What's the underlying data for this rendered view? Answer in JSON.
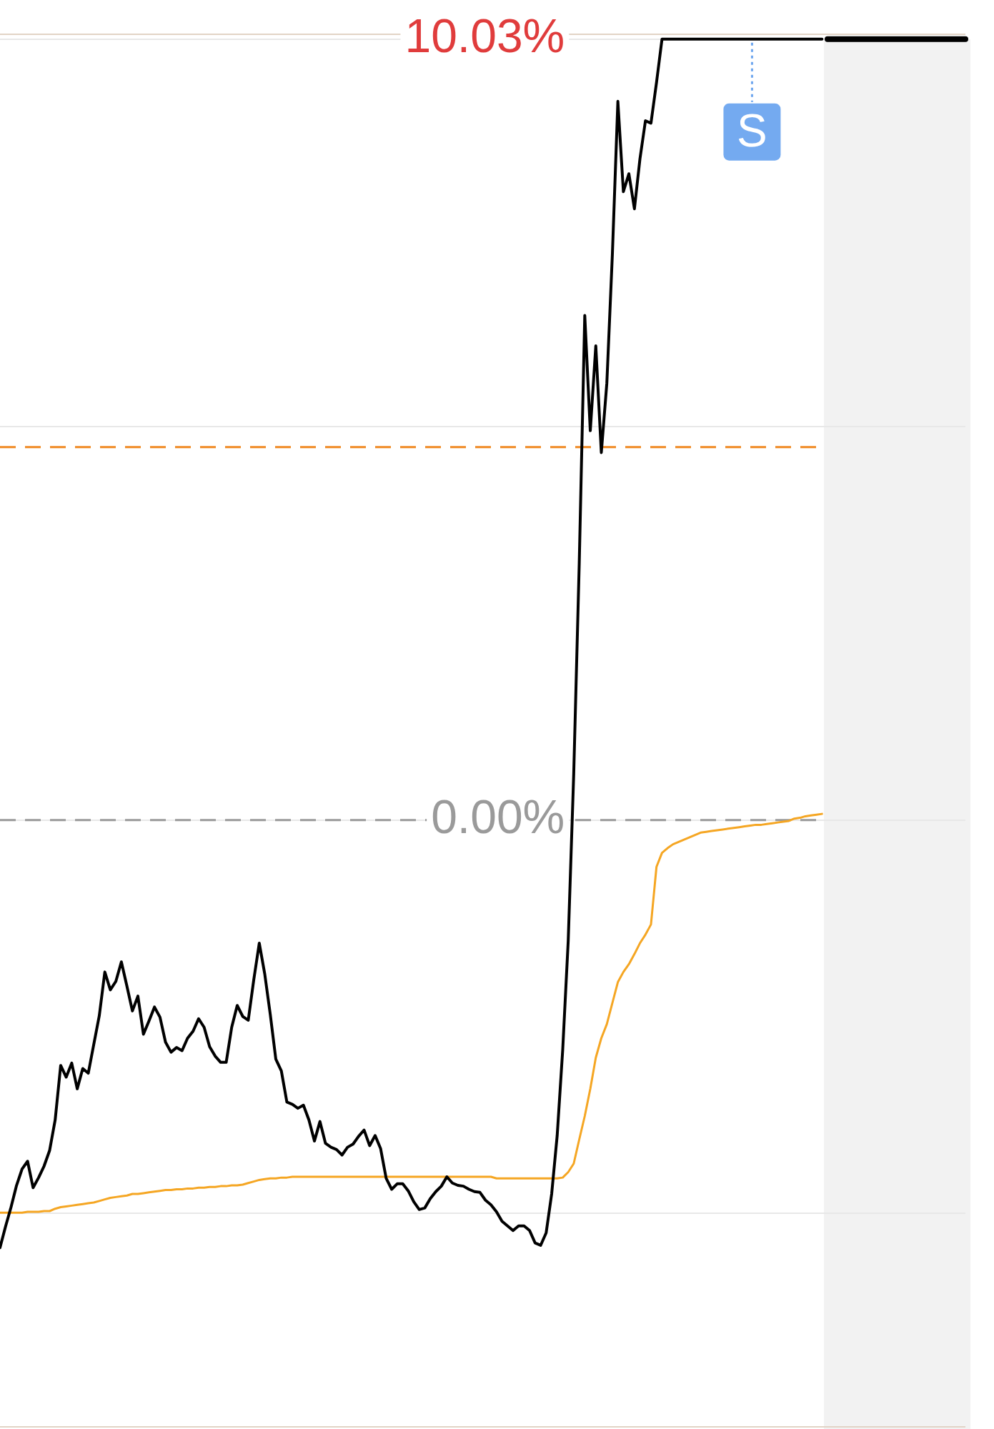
{
  "chart_data": {
    "type": "line",
    "categories": [
      null,
      null,
      null,
      null,
      null,
      null,
      null,
      null,
      null,
      null,
      null,
      null,
      null,
      null,
      null,
      null,
      null,
      null,
      null,
      null,
      null,
      null,
      null,
      null,
      null,
      null,
      null,
      null,
      null,
      null,
      null,
      null,
      null,
      null,
      null,
      null,
      null,
      null,
      null,
      null,
      null,
      null,
      null,
      null,
      null,
      null,
      null,
      null,
      null,
      null,
      null,
      null,
      null,
      null,
      null,
      null,
      null,
      null,
      null,
      null,
      null,
      null,
      null,
      null,
      null,
      null,
      null,
      null,
      null,
      null,
      null,
      null,
      null,
      null,
      null,
      null,
      null,
      null,
      null,
      null,
      null,
      null,
      null,
      null,
      null,
      null,
      null,
      null,
      null,
      null,
      null,
      null,
      null,
      null,
      null,
      null,
      null,
      null,
      null,
      null,
      null,
      null,
      null,
      null,
      null,
      null,
      null,
      null,
      null,
      null,
      null,
      null,
      null,
      null,
      null,
      null,
      null,
      null,
      null,
      null,
      null,
      null,
      null,
      null,
      null,
      null,
      null,
      null,
      null,
      null,
      null,
      null,
      null,
      null,
      null,
      null,
      null,
      null,
      null,
      null,
      null,
      null,
      null,
      null,
      null,
      null,
      null,
      null,
      null,
      null,
      null,
      null,
      null,
      null,
      null,
      null,
      null,
      null,
      null,
      null,
      null,
      null,
      null,
      null,
      null,
      null,
      null,
      null,
      null,
      null,
      null,
      null,
      null,
      null,
      null,
      null
    ],
    "series": [
      {
        "color": "#000000",
        "values": [
          -5.49,
          -5.22,
          -4.97,
          -4.69,
          -4.48,
          -4.38,
          -4.72,
          -4.59,
          -4.44,
          -4.24,
          -3.85,
          -3.15,
          -3.3,
          -3.12,
          -3.45,
          -3.19,
          -3.25,
          -2.88,
          -2.51,
          -1.95,
          -2.18,
          -2.07,
          -1.82,
          -2.13,
          -2.45,
          -2.26,
          -2.75,
          -2.58,
          -2.4,
          -2.53,
          -2.85,
          -2.98,
          -2.92,
          -2.96,
          -2.8,
          -2.71,
          -2.55,
          -2.66,
          -2.91,
          -3.03,
          -3.11,
          -3.11,
          -2.66,
          -2.38,
          -2.52,
          -2.57,
          -2.05,
          -1.58,
          -1.98,
          -2.5,
          -3.07,
          -3.22,
          -3.62,
          -3.65,
          -3.7,
          -3.66,
          -3.85,
          -4.12,
          -3.87,
          -4.15,
          -4.2,
          -4.23,
          -4.3,
          -4.2,
          -4.16,
          -4.06,
          -3.98,
          -4.18,
          -4.05,
          -4.22,
          -4.6,
          -4.74,
          -4.67,
          -4.67,
          -4.76,
          -4.9,
          -5.0,
          -4.98,
          -4.86,
          -4.77,
          -4.7,
          -4.58,
          -4.66,
          -4.69,
          -4.7,
          -4.74,
          -4.77,
          -4.78,
          -4.88,
          -4.94,
          -5.03,
          -5.15,
          -5.21,
          -5.27,
          -5.21,
          -5.21,
          -5.27,
          -5.43,
          -5.46,
          -5.3,
          -4.8,
          -4.05,
          -2.95,
          -1.55,
          0.6,
          3.3,
          6.48,
          5.0,
          6.09,
          4.72,
          5.61,
          7.26,
          9.23,
          8.07,
          8.3,
          7.85,
          8.49,
          8.98,
          8.95,
          9.47,
          10.03,
          10.03,
          10.03,
          10.03,
          10.03,
          10.03,
          10.03,
          10.03,
          10.03,
          10.03,
          10.03,
          10.03,
          10.03,
          10.03,
          10.03,
          10.03,
          10.03,
          10.03,
          10.03,
          10.03,
          10.03,
          10.03,
          10.03,
          10.03,
          10.03,
          10.03,
          10.03,
          10.03,
          10.03,
          10.03,
          null,
          null,
          null,
          null,
          null,
          null,
          null,
          null,
          null,
          null,
          null,
          null,
          null,
          null,
          null,
          null,
          null,
          null,
          null,
          null,
          null,
          null,
          null,
          null,
          null,
          null
        ]
      },
      {
        "color": "#f5a623",
        "values": [
          -5.04,
          -5.04,
          -5.04,
          -5.04,
          -5.04,
          -5.03,
          -5.03,
          -5.03,
          -5.02,
          -5.02,
          -4.99,
          -4.97,
          -4.96,
          -4.95,
          -4.94,
          -4.93,
          -4.92,
          -4.91,
          -4.89,
          -4.87,
          -4.85,
          -4.84,
          -4.83,
          -4.82,
          -4.8,
          -4.8,
          -4.79,
          -4.78,
          -4.77,
          -4.76,
          -4.75,
          -4.75,
          -4.74,
          -4.74,
          -4.73,
          -4.73,
          -4.72,
          -4.72,
          -4.71,
          -4.71,
          -4.7,
          -4.7,
          -4.69,
          -4.69,
          -4.68,
          -4.66,
          -4.64,
          -4.62,
          -4.61,
          -4.6,
          -4.6,
          -4.59,
          -4.59,
          -4.58,
          -4.58,
          -4.58,
          -4.58,
          -4.58,
          -4.58,
          -4.58,
          -4.58,
          -4.58,
          -4.58,
          -4.58,
          -4.58,
          -4.58,
          -4.58,
          -4.58,
          -4.58,
          -4.58,
          -4.58,
          -4.58,
          -4.58,
          -4.58,
          -4.58,
          -4.58,
          -4.58,
          -4.58,
          -4.58,
          -4.58,
          -4.58,
          -4.58,
          -4.58,
          -4.58,
          -4.58,
          -4.58,
          -4.58,
          -4.58,
          -4.58,
          -4.58,
          -4.6,
          -4.6,
          -4.6,
          -4.6,
          -4.6,
          -4.6,
          -4.6,
          -4.6,
          -4.6,
          -4.6,
          -4.6,
          -4.6,
          -4.59,
          -4.52,
          -4.41,
          -4.1,
          -3.8,
          -3.45,
          -3.05,
          -2.8,
          -2.62,
          -2.35,
          -2.08,
          -1.95,
          -1.85,
          -1.72,
          -1.58,
          -1.47,
          -1.34,
          -0.6,
          -0.42,
          -0.36,
          -0.31,
          -0.28,
          -0.25,
          -0.22,
          -0.19,
          -0.16,
          -0.15,
          -0.14,
          -0.13,
          -0.12,
          -0.11,
          -0.1,
          -0.09,
          -0.08,
          -0.07,
          -0.06,
          -0.06,
          -0.05,
          -0.04,
          -0.03,
          -0.02,
          -0.01,
          0.02,
          0.03,
          0.05,
          0.06,
          0.07,
          0.08,
          null,
          null,
          null,
          null,
          null,
          null,
          null,
          null,
          null,
          null,
          null,
          null,
          null,
          null,
          null,
          null,
          null,
          null,
          null,
          null,
          null,
          null,
          null,
          null,
          null,
          null
        ]
      },
      {
        "color": "#000000",
        "values": [
          null,
          null,
          null,
          null,
          null,
          null,
          null,
          null,
          null,
          null,
          null,
          null,
          null,
          null,
          null,
          null,
          null,
          null,
          null,
          null,
          null,
          null,
          null,
          null,
          null,
          null,
          null,
          null,
          null,
          null,
          null,
          null,
          null,
          null,
          null,
          null,
          null,
          null,
          null,
          null,
          null,
          null,
          null,
          null,
          null,
          null,
          null,
          null,
          null,
          null,
          null,
          null,
          null,
          null,
          null,
          null,
          null,
          null,
          null,
          null,
          null,
          null,
          null,
          null,
          null,
          null,
          null,
          null,
          null,
          null,
          null,
          null,
          null,
          null,
          null,
          null,
          null,
          null,
          null,
          null,
          null,
          null,
          null,
          null,
          null,
          null,
          null,
          null,
          null,
          null,
          null,
          null,
          null,
          null,
          null,
          null,
          null,
          null,
          null,
          null,
          null,
          null,
          null,
          null,
          null,
          null,
          null,
          null,
          null,
          null,
          null,
          null,
          null,
          null,
          null,
          null,
          null,
          null,
          null,
          null,
          null,
          null,
          null,
          null,
          null,
          null,
          null,
          null,
          null,
          null,
          null,
          null,
          null,
          null,
          null,
          null,
          null,
          null,
          null,
          null,
          null,
          null,
          null,
          null,
          null,
          null,
          null,
          null,
          null,
          null,
          10.03,
          10.03,
          10.03,
          10.03,
          10.03,
          10.03,
          10.03,
          10.03,
          10.03,
          10.03,
          10.03,
          10.03,
          10.03,
          10.03,
          10.03,
          10.03,
          10.03,
          10.03,
          10.03,
          10.03,
          10.03,
          10.03,
          10.03,
          10.03,
          10.03,
          10.03
        ]
      }
    ],
    "ylim": [
      -7.8,
      10.1
    ],
    "yticks": [
      {
        "value": 10.03,
        "label": "10.03%"
      },
      {
        "value": 5.05,
        "label": null
      },
      {
        "value": 0,
        "label": "0.00%"
      },
      {
        "value": -5.05,
        "label": null
      }
    ],
    "grid": "y",
    "marker": "none",
    "line_style": "solid",
    "ref_lines": [
      {
        "axis": "y",
        "value": 4.79,
        "color": "#f08a24",
        "line_style": "dashed"
      },
      {
        "axis": "y",
        "value": 0,
        "color": "#9a9a9a",
        "line_style": "dashed"
      }
    ],
    "annotations": [
      {
        "text": "S",
        "y": 10.03
      }
    ]
  }
}
